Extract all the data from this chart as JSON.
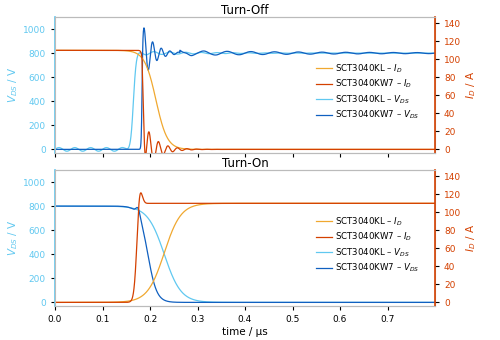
{
  "title_top": "Turn-Off",
  "title_bottom": "Turn-On",
  "xlabel": "time / μs",
  "ylabel_left": "$V_{DS}$ / V",
  "ylabel_right": "$I_D$ / A",
  "xlim": [
    0,
    0.8
  ],
  "ylim_left": [
    -30,
    1100
  ],
  "ylim_right": [
    -4,
    147
  ],
  "yticks_left": [
    0,
    200,
    400,
    600,
    800,
    1000
  ],
  "yticks_right": [
    0,
    20,
    40,
    60,
    80,
    100,
    120,
    140
  ],
  "xticks": [
    0,
    0.1,
    0.2,
    0.3,
    0.4,
    0.5,
    0.6,
    0.7
  ],
  "colors": {
    "KL_ID": "#F0A830",
    "KW7_ID": "#D44000",
    "KL_VDS": "#60C8F0",
    "KW7_VDS": "#1060C0"
  },
  "legend_labels": [
    "SCT3040KL – I_D",
    "SCT3040KW7 – I_D",
    "SCT3040KL – V_DS",
    "SCT3040KW7 – V_DS"
  ],
  "background": "#FFFFFF"
}
